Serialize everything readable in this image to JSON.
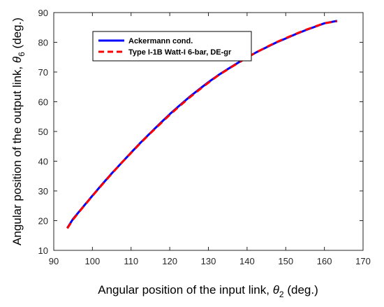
{
  "chart_data": {
    "type": "line",
    "title": "",
    "xlabel": {
      "main": "Angular position of the input link, ",
      "symbol": "θ",
      "sub": "2",
      "unit": " (deg.)"
    },
    "ylabel": {
      "main": "Angular position of the output link, ",
      "symbol": "θ",
      "sub": "6",
      "unit": " (deg.)"
    },
    "xlim": [
      90,
      170
    ],
    "ylim": [
      10,
      90
    ],
    "xticks": [
      90,
      100,
      110,
      120,
      130,
      140,
      150,
      160,
      170
    ],
    "yticks": [
      10,
      20,
      30,
      40,
      50,
      60,
      70,
      80,
      90
    ],
    "grid": false,
    "legend_position": "top-left",
    "series": [
      {
        "name": "Ackermann cond.",
        "color": "#0000ff",
        "style": "solid",
        "x": [
          93.5,
          95,
          97.5,
          100,
          102.5,
          105,
          107.5,
          110,
          112.5,
          115,
          117.5,
          120,
          122.5,
          125,
          127.5,
          130,
          132.5,
          135,
          137.5,
          140,
          142.5,
          145,
          147.5,
          150,
          152.5,
          155,
          157.5,
          160,
          163.3
        ],
        "y": [
          17.5,
          20.6,
          24.5,
          28.4,
          32.2,
          35.9,
          39.4,
          42.9,
          46.3,
          49.5,
          52.7,
          55.8,
          58.7,
          61.5,
          64.1,
          66.6,
          68.9,
          71.0,
          73.0,
          74.9,
          76.7,
          78.3,
          79.9,
          81.3,
          82.7,
          84.0,
          85.2,
          86.4,
          87.2
        ]
      },
      {
        "name": "Type I-1B Watt-I 6-bar, DE-gr",
        "color": "#ff0000",
        "style": "dashed",
        "x": [
          93.5,
          95,
          97.5,
          100,
          102.5,
          105,
          107.5,
          110,
          112.5,
          115,
          117.5,
          120,
          122.5,
          125,
          127.5,
          130,
          132.5,
          135,
          137.5,
          140,
          142.5,
          145,
          147.5,
          150,
          152.5,
          155,
          157.5,
          160,
          163.3
        ],
        "y": [
          17.4,
          20.4,
          24.4,
          28.3,
          32.1,
          35.8,
          39.4,
          42.8,
          46.2,
          49.4,
          52.5,
          55.6,
          58.5,
          61.3,
          63.9,
          66.4,
          68.8,
          70.9,
          72.9,
          74.9,
          76.7,
          78.4,
          80.0,
          81.4,
          82.8,
          84.1,
          85.3,
          86.4,
          87.1
        ]
      }
    ]
  }
}
